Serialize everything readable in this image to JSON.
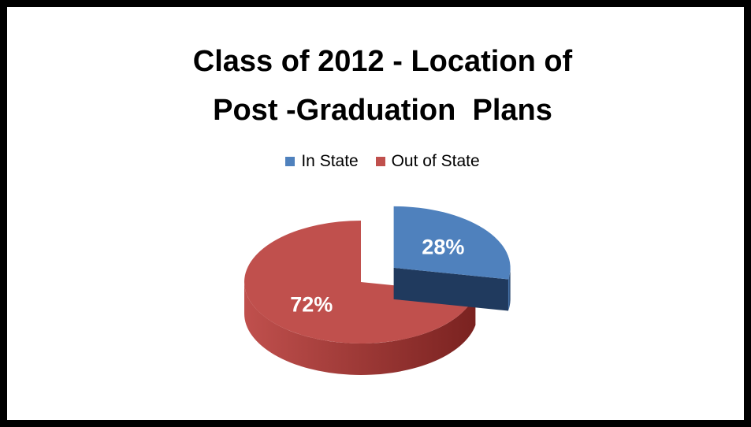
{
  "chart_data": {
    "type": "pie",
    "title_lines": [
      "Class of 2012 - Location of",
      "Post -Graduation  Plans"
    ],
    "legend_position": "top",
    "legend": [
      {
        "label": "In State",
        "color": "#4f81bd"
      },
      {
        "label": "Out of State",
        "color": "#c0504d"
      }
    ],
    "slices": [
      {
        "label": "In State",
        "value": 28,
        "display": "28%",
        "color": "#4f81bd",
        "side_color": "#203a5e",
        "exploded": true
      },
      {
        "label": "Out of State",
        "value": 72,
        "display": "72%",
        "color": "#c0504d",
        "side_color": "#7a2220",
        "exploded": false
      }
    ]
  }
}
